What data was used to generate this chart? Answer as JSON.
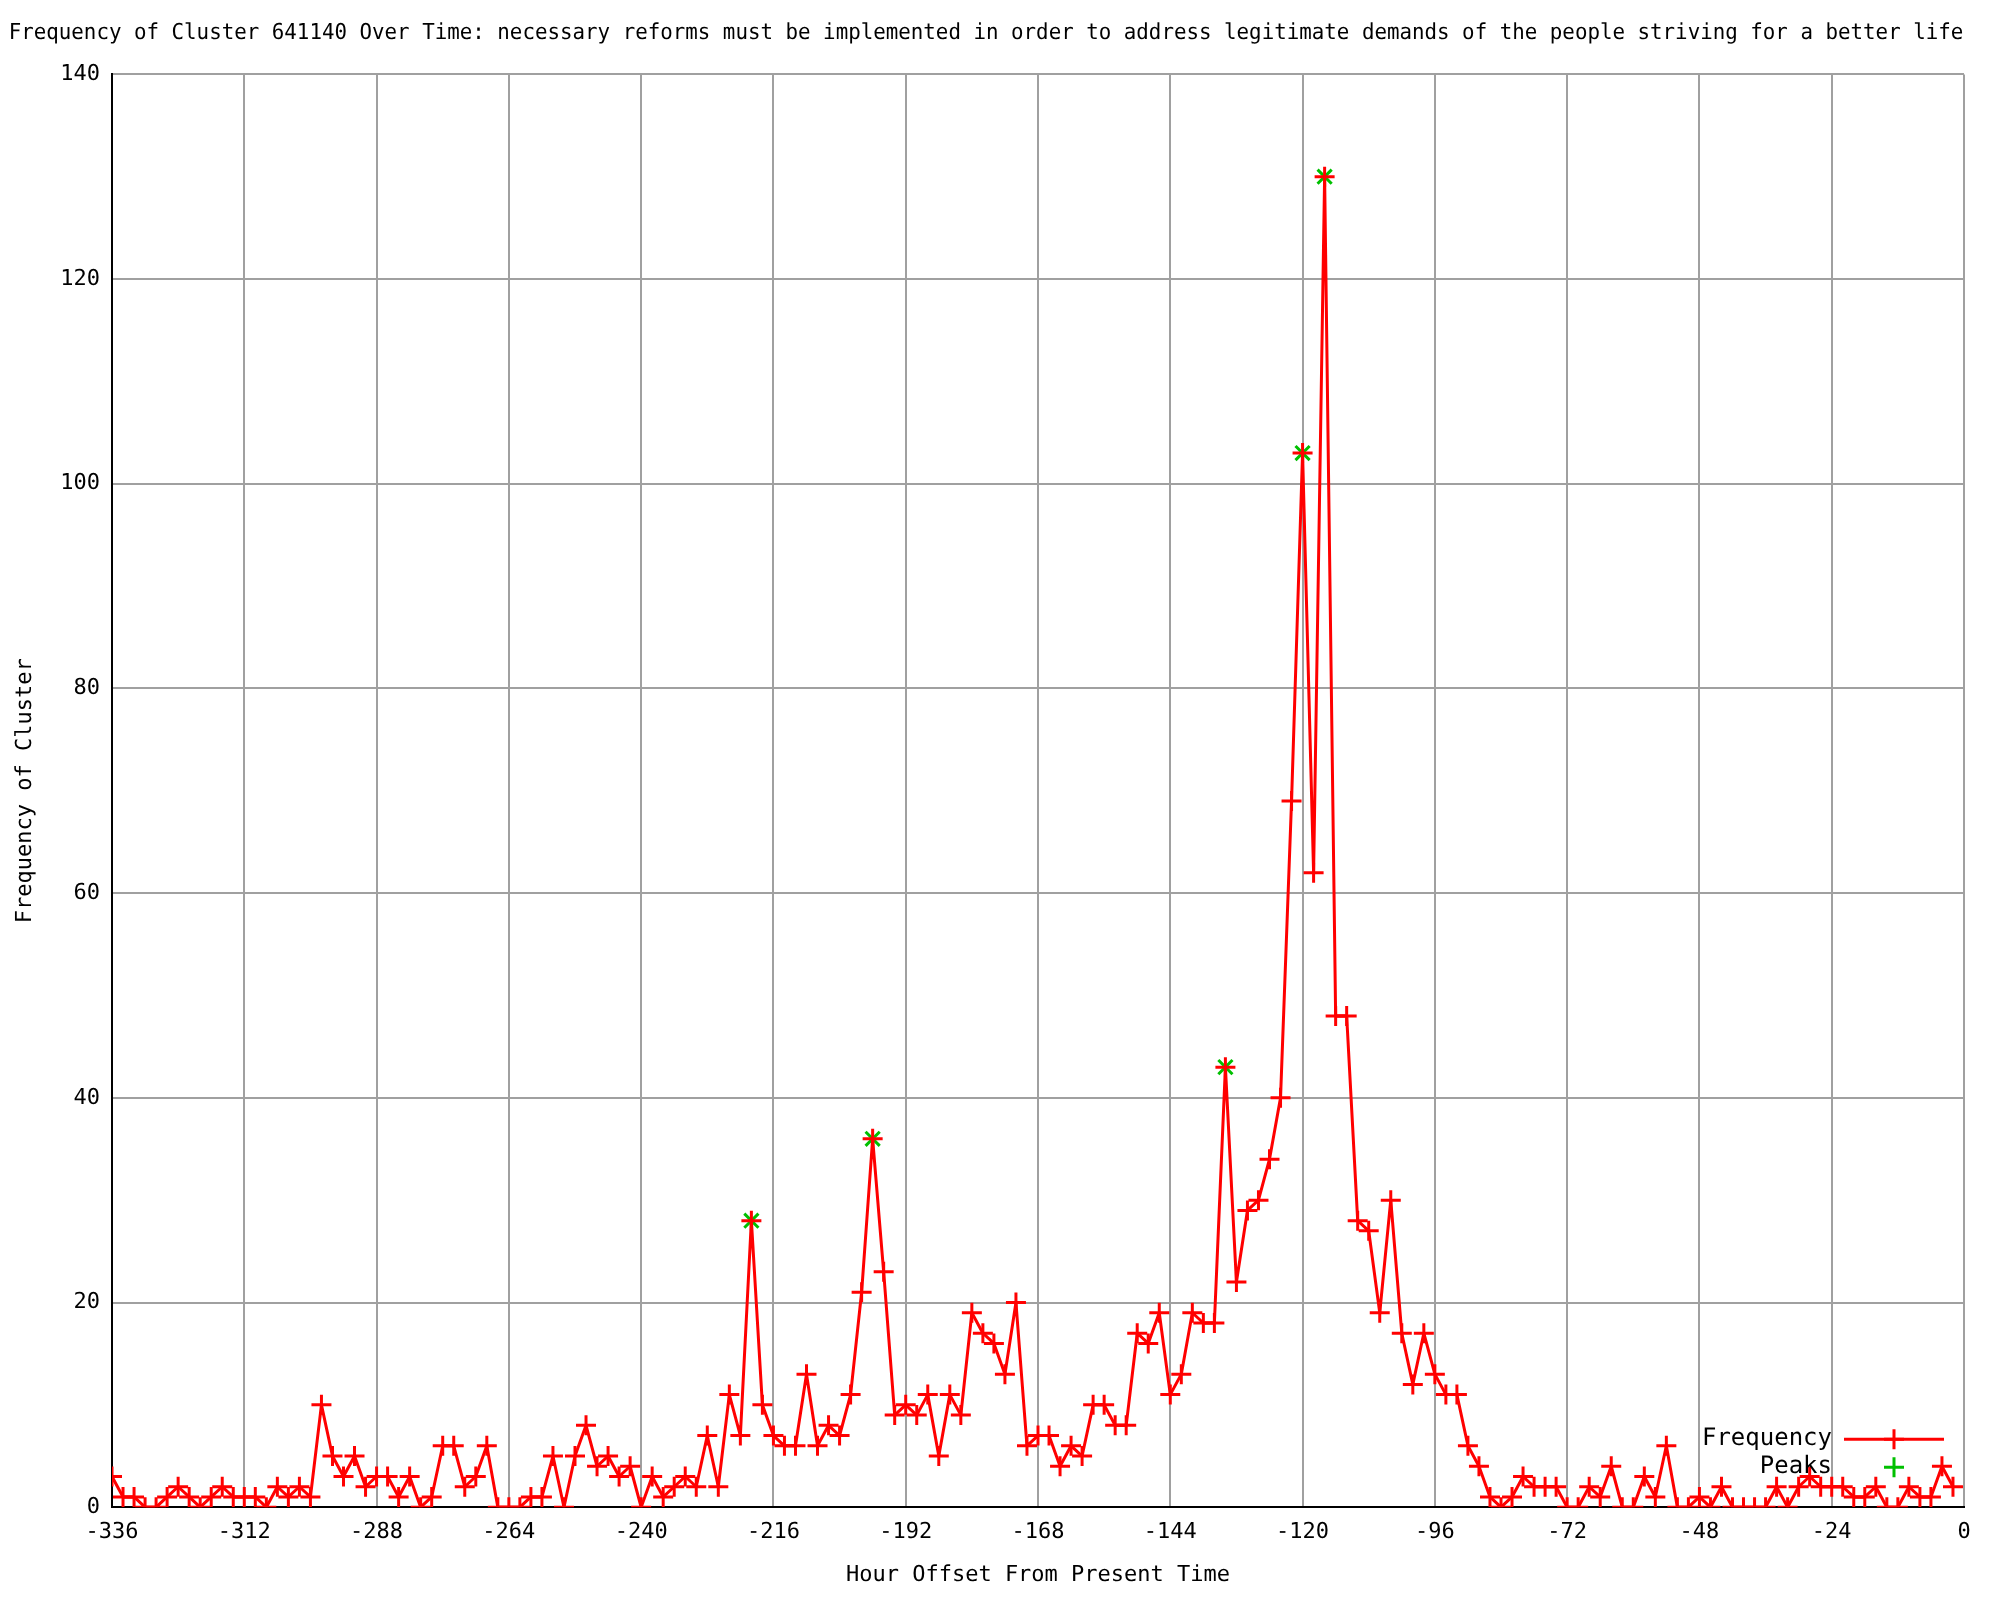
{
  "chart_data": {
    "type": "line",
    "title": "Frequency of Cluster 641140 Over Time: necessary reforms must be implemented in order to address legitimate demands of the people striving for a better life",
    "xlabel": "Hour Offset From Present Time",
    "ylabel": "Frequency of Cluster",
    "xlim": [
      -336,
      0
    ],
    "xticks": [
      -336,
      -312,
      -288,
      -264,
      -240,
      -216,
      -192,
      -168,
      -144,
      -120,
      -96,
      -72,
      -48,
      -24,
      0
    ],
    "ylim": [
      0,
      140
    ],
    "yticks": [
      0,
      20,
      40,
      60,
      80,
      100,
      120,
      140
    ],
    "grid": true,
    "legend": "bottom right",
    "series": [
      {
        "name": "Frequency",
        "type": "line",
        "color": "#ff0000",
        "marker": "cross",
        "line_style": "solid",
        "x": [
          -336,
          -334,
          -332,
          -330,
          -328,
          -326,
          -324,
          -322,
          -320,
          -318,
          -316,
          -314,
          -312,
          -310,
          -308,
          -306,
          -304,
          -302,
          -300,
          -298,
          -296,
          -294,
          -292,
          -290,
          -288,
          -286,
          -284,
          -282,
          -280,
          -278,
          -276,
          -274,
          -272,
          -270,
          -268,
          -266,
          -264,
          -262,
          -260,
          -258,
          -256,
          -254,
          -252,
          -250,
          -248,
          -246,
          -244,
          -242,
          -240,
          -238,
          -236,
          -234,
          -232,
          -230,
          -228,
          -226,
          -224,
          -222,
          -220,
          -218,
          -216,
          -214,
          -212,
          -210,
          -208,
          -206,
          -204,
          -202,
          -200,
          -198,
          -196,
          -194,
          -192,
          -190,
          -188,
          -186,
          -184,
          -182,
          -180,
          -178,
          -176,
          -174,
          -172,
          -170,
          -168,
          -166,
          -164,
          -162,
          -160,
          -158,
          -156,
          -154,
          -152,
          -150,
          -148,
          -146,
          -144,
          -142,
          -140,
          -138,
          -136,
          -134,
          -132,
          -130,
          -128,
          -126,
          -124,
          -122,
          -120,
          -118,
          -116,
          -114,
          -112,
          -110,
          -108,
          -106,
          -104,
          -102,
          -100,
          -98,
          -96,
          -94,
          -92,
          -90,
          -88,
          -86,
          -84,
          -82,
          -80,
          -78,
          -76,
          -74,
          -72,
          -70,
          -68,
          -66,
          -64,
          -62,
          -60,
          -58,
          -56,
          -54,
          -52,
          -50,
          -48,
          -46,
          -44,
          -42,
          -40,
          -38,
          -36,
          -34,
          -32,
          -30,
          -28,
          -26,
          -24,
          -22,
          -20,
          -18,
          -16,
          -14,
          -12,
          -10,
          -8,
          -6,
          -4,
          -2
        ],
        "values": [
          3,
          1,
          1,
          0,
          0,
          1,
          2,
          1,
          0,
          1,
          2,
          1,
          1,
          1,
          0,
          2,
          1,
          2,
          1,
          10,
          5,
          3,
          5,
          2,
          3,
          3,
          1,
          3,
          0,
          1,
          6,
          6,
          2,
          3,
          6,
          0,
          0,
          0,
          1,
          1,
          5,
          0,
          5,
          8,
          4,
          5,
          3,
          4,
          0,
          3,
          1,
          2,
          3,
          2,
          7,
          2,
          11,
          7,
          28,
          10,
          7,
          6,
          6,
          13,
          6,
          8,
          7,
          11,
          21,
          36,
          23,
          9,
          10,
          9,
          11,
          5,
          11,
          9,
          19,
          17,
          16,
          13,
          20,
          6,
          7,
          7,
          4,
          6,
          5,
          10,
          10,
          8,
          8,
          17,
          16,
          19,
          11,
          13,
          19,
          18,
          18,
          43,
          22,
          29,
          30,
          34,
          40,
          69,
          103,
          62,
          130,
          48,
          48,
          28,
          27,
          19,
          30,
          17,
          12,
          17,
          13,
          11,
          11,
          6,
          4,
          1,
          0,
          1,
          3,
          2,
          2,
          2,
          0,
          0,
          2,
          1,
          4,
          0,
          0,
          3,
          1,
          6,
          0,
          0,
          1,
          0,
          2,
          0,
          0,
          0,
          0,
          2,
          0,
          2,
          3,
          2,
          2,
          2,
          1,
          1,
          2,
          0,
          0,
          2,
          1,
          1,
          4,
          2
        ]
      },
      {
        "name": "Peaks",
        "type": "scatter",
        "color": "#00c000",
        "marker": "cross",
        "x": [
          -220,
          -198,
          -134,
          -120,
          -116
        ],
        "values": [
          28,
          36,
          43,
          103,
          130
        ]
      }
    ]
  }
}
